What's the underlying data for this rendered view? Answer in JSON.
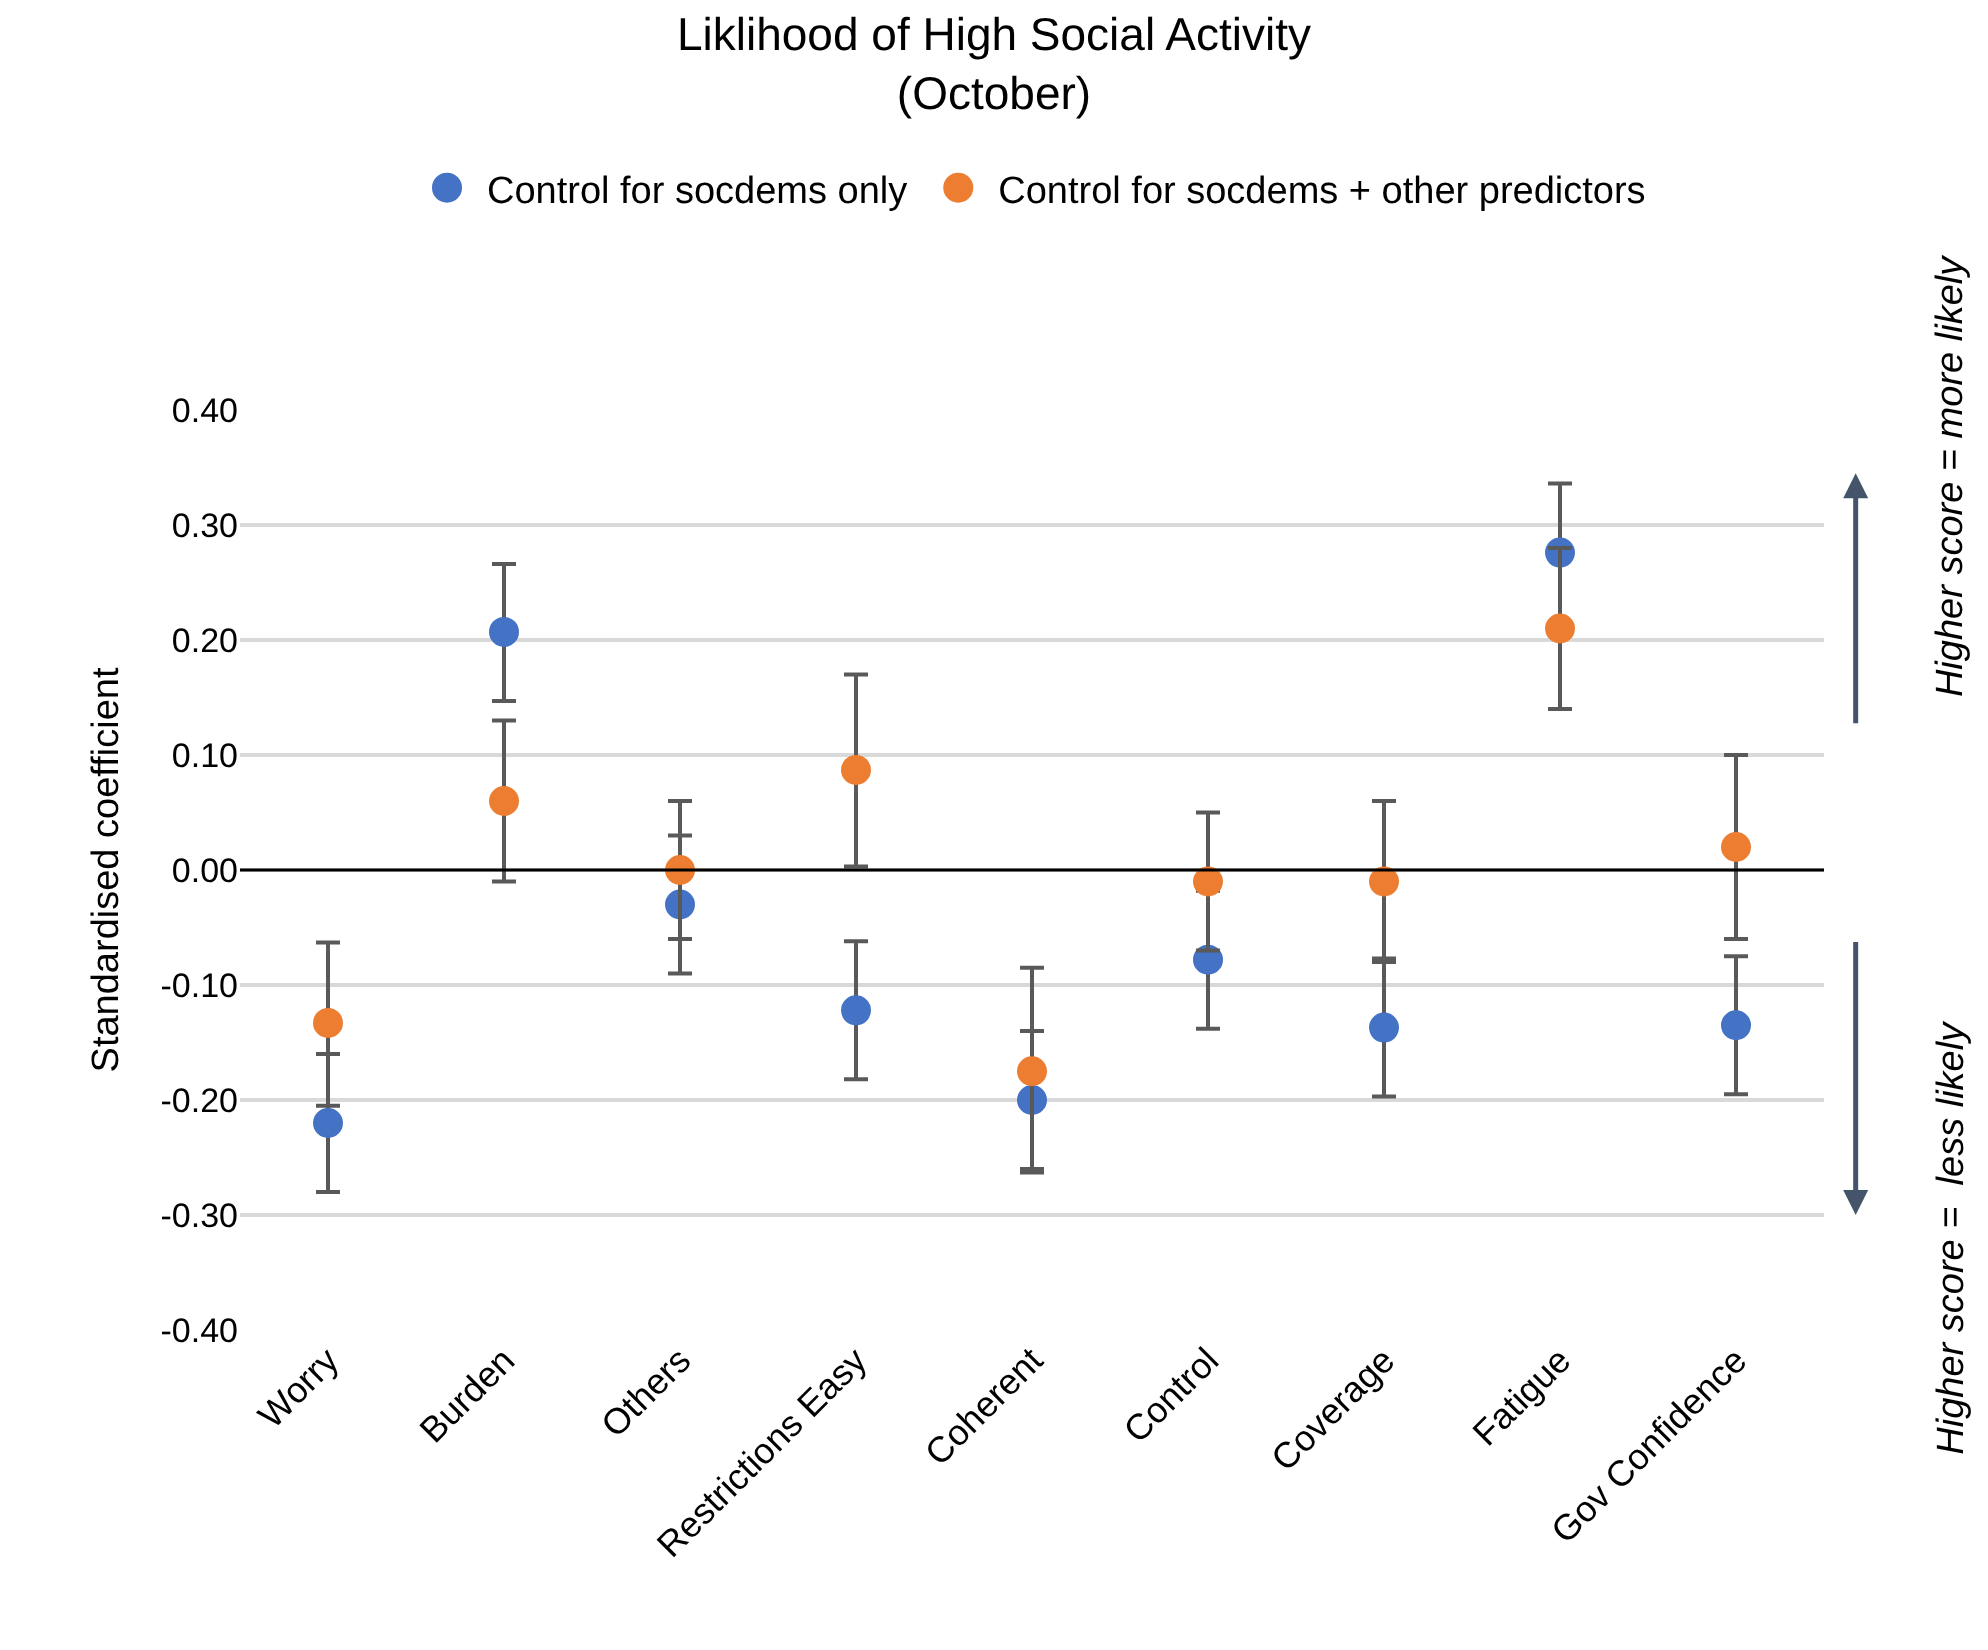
{
  "chart_data": {
    "type": "scatter",
    "title": "Liklihood of High Social Activity\n(October)",
    "ylabel": "Standardised coefficient",
    "categories": [
      "Worry",
      "Burden",
      "Others",
      "Restrictions Easy",
      "Coherent",
      "Control",
      "Coverage",
      "Fatigue",
      "Gov Confidence"
    ],
    "series": [
      {
        "name": "Control for socdems only",
        "color": "#4472c4",
        "values": [
          -0.22,
          0.207,
          -0.03,
          -0.122,
          -0.2,
          -0.078,
          -0.137,
          0.276,
          -0.135
        ],
        "errors": [
          [
            -0.28,
            -0.16
          ],
          [
            0.147,
            0.266
          ],
          [
            -0.09,
            0.03
          ],
          [
            -0.182,
            -0.062
          ],
          [
            -0.263,
            -0.14
          ],
          [
            -0.138,
            -0.018
          ],
          [
            -0.197,
            -0.077
          ],
          [
            0.276,
            0.336
          ],
          [
            -0.195,
            -0.075
          ]
        ]
      },
      {
        "name": "Control for socdems + other predictors",
        "color": "#ed7d31",
        "values": [
          -0.133,
          0.06,
          0.0,
          0.087,
          -0.175,
          -0.01,
          -0.01,
          0.21,
          0.02
        ],
        "errors": [
          [
            -0.205,
            -0.063
          ],
          [
            -0.01,
            0.13
          ],
          [
            -0.06,
            0.06
          ],
          [
            0.003,
            0.17
          ],
          [
            -0.26,
            -0.085
          ],
          [
            -0.07,
            0.05
          ],
          [
            -0.08,
            0.06
          ],
          [
            0.14,
            0.28
          ],
          [
            -0.06,
            0.1
          ]
        ]
      }
    ],
    "ylim": [
      -0.4,
      0.4
    ],
    "yticks": [
      {
        "value": -0.4,
        "label": "-0.40"
      },
      {
        "value": -0.3,
        "label": "-0.30"
      },
      {
        "value": -0.2,
        "label": "-0.20"
      },
      {
        "value": -0.1,
        "label": "-0.10"
      },
      {
        "value": 0,
        "label": "0.00"
      },
      {
        "value": 0.1,
        "label": "0.10"
      },
      {
        "value": 0.2,
        "label": "0.20"
      },
      {
        "value": 0.3,
        "label": "0.30"
      },
      {
        "value": 0.4,
        "label": "0.40"
      }
    ],
    "ref_lines": [
      {
        "axis": "y",
        "value": 0,
        "color": "#000000"
      }
    ],
    "annotations": [
      "Higher score = more likely",
      "Higher score =  less likely"
    ],
    "grid": "y",
    "legend": "top",
    "marker": "circle"
  }
}
